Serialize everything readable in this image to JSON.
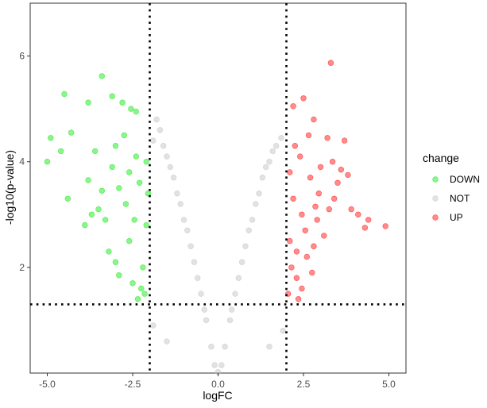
{
  "chart_data": {
    "type": "scatter",
    "title": "",
    "xlabel": "logFC",
    "ylabel": "-log10(p-value)",
    "xlim": [
      -5.5,
      5.5
    ],
    "ylim": [
      0,
      7.0
    ],
    "x_ticks": [
      {
        "value": -5.0,
        "label": "-5.0"
      },
      {
        "value": -2.5,
        "label": "-2.5"
      },
      {
        "value": 0.0,
        "label": "0.0"
      },
      {
        "value": 2.5,
        "label": "2.5"
      },
      {
        "value": 5.0,
        "label": "5.0"
      }
    ],
    "y_ticks": [
      {
        "value": 2,
        "label": "2"
      },
      {
        "value": 4,
        "label": "4"
      },
      {
        "value": 6,
        "label": "6"
      }
    ],
    "thresholds": {
      "logFC": [
        -2,
        2
      ],
      "neg_log10_p": 1.3
    },
    "grid": false,
    "legend_position": "right",
    "legend": {
      "title": "change",
      "entries": [
        {
          "name": "DOWN",
          "color": "#00e600"
        },
        {
          "name": "NOT",
          "color": "#bebebe"
        },
        {
          "name": "UP",
          "color": "#ff0000"
        }
      ]
    },
    "series": [
      {
        "name": "DOWN",
        "color": "#00e600",
        "points": [
          [
            -4.9,
            4.45
          ],
          [
            -4.5,
            5.28
          ],
          [
            -3.8,
            5.12
          ],
          [
            -3.4,
            5.62
          ],
          [
            -3.1,
            5.24
          ],
          [
            -2.8,
            5.12
          ],
          [
            -2.55,
            5.0
          ],
          [
            -2.4,
            4.95
          ],
          [
            -5.0,
            4.0
          ],
          [
            -4.6,
            4.2
          ],
          [
            -4.3,
            4.55
          ],
          [
            -4.4,
            3.3
          ],
          [
            -3.8,
            3.65
          ],
          [
            -3.9,
            2.8
          ],
          [
            -3.6,
            4.2
          ],
          [
            -3.5,
            3.1
          ],
          [
            -3.3,
            2.9
          ],
          [
            -3.2,
            2.3
          ],
          [
            -3.1,
            3.9
          ],
          [
            -3.0,
            2.1
          ],
          [
            -2.9,
            1.85
          ],
          [
            -2.9,
            3.5
          ],
          [
            -2.7,
            3.2
          ],
          [
            -2.6,
            2.5
          ],
          [
            -2.5,
            1.7
          ],
          [
            -2.4,
            4.1
          ],
          [
            -2.3,
            3.6
          ],
          [
            -2.2,
            2.0
          ],
          [
            -2.15,
            1.5
          ],
          [
            -2.1,
            2.8
          ],
          [
            -2.05,
            3.4
          ],
          [
            -3.4,
            3.45
          ],
          [
            -3.7,
            3.0
          ],
          [
            -2.75,
            4.5
          ],
          [
            -2.45,
            2.9
          ],
          [
            -2.25,
            1.6
          ],
          [
            -3.0,
            4.3
          ],
          [
            -2.6,
            3.8
          ],
          [
            -2.35,
            1.4
          ],
          [
            -2.1,
            4.0
          ]
        ]
      },
      {
        "name": "UP",
        "color": "#ff0000",
        "points": [
          [
            3.3,
            5.87
          ],
          [
            2.2,
            5.05
          ],
          [
            2.5,
            5.2
          ],
          [
            2.8,
            4.8
          ],
          [
            3.2,
            4.45
          ],
          [
            3.7,
            4.4
          ],
          [
            3.6,
            3.85
          ],
          [
            3.8,
            3.75
          ],
          [
            3.9,
            3.1
          ],
          [
            4.1,
            3.0
          ],
          [
            4.4,
            2.9
          ],
          [
            4.9,
            2.78
          ],
          [
            4.3,
            2.75
          ],
          [
            3.1,
            2.6
          ],
          [
            2.8,
            2.4
          ],
          [
            3.4,
            3.3
          ],
          [
            2.7,
            3.7
          ],
          [
            2.4,
            4.1
          ],
          [
            3.0,
            3.9
          ],
          [
            2.9,
            2.9
          ],
          [
            2.6,
            2.2
          ],
          [
            2.3,
            1.8
          ],
          [
            2.2,
            3.3
          ],
          [
            2.1,
            2.5
          ],
          [
            2.05,
            1.5
          ],
          [
            2.15,
            2.0
          ],
          [
            2.45,
            3.0
          ],
          [
            2.35,
            1.4
          ],
          [
            3.5,
            3.6
          ],
          [
            2.65,
            4.5
          ],
          [
            3.25,
            3.1
          ],
          [
            2.25,
            4.3
          ],
          [
            2.75,
            1.9
          ],
          [
            2.95,
            3.4
          ],
          [
            2.1,
            3.8
          ],
          [
            2.55,
            2.7
          ],
          [
            3.35,
            4.0
          ],
          [
            2.85,
            3.15
          ],
          [
            2.3,
            2.3
          ],
          [
            2.45,
            1.6
          ]
        ]
      },
      {
        "name": "NOT",
        "color": "#bebebe",
        "points": [
          [
            -1.8,
            4.8
          ],
          [
            -1.7,
            4.6
          ],
          [
            -1.9,
            4.4
          ],
          [
            -1.5,
            4.1
          ],
          [
            -1.3,
            3.7
          ],
          [
            -1.1,
            3.2
          ],
          [
            -0.9,
            2.7
          ],
          [
            -0.7,
            2.1
          ],
          [
            -0.5,
            1.5
          ],
          [
            -0.35,
            1.0
          ],
          [
            -0.2,
            0.5
          ],
          [
            -0.1,
            0.15
          ],
          [
            0.0,
            0.02
          ],
          [
            0.1,
            0.15
          ],
          [
            0.2,
            0.5
          ],
          [
            0.35,
            1.0
          ],
          [
            0.5,
            1.5
          ],
          [
            0.7,
            2.1
          ],
          [
            0.9,
            2.7
          ],
          [
            1.1,
            3.2
          ],
          [
            1.3,
            3.7
          ],
          [
            1.5,
            4.0
          ],
          [
            1.7,
            4.3
          ],
          [
            1.85,
            4.45
          ],
          [
            1.6,
            4.2
          ],
          [
            1.4,
            3.9
          ],
          [
            -1.6,
            4.3
          ],
          [
            -1.4,
            3.9
          ],
          [
            -1.2,
            3.4
          ],
          [
            -1.0,
            2.9
          ],
          [
            -0.8,
            2.4
          ],
          [
            -0.6,
            1.8
          ],
          [
            -0.4,
            1.2
          ],
          [
            0.4,
            1.2
          ],
          [
            0.6,
            1.8
          ],
          [
            0.8,
            2.4
          ],
          [
            1.0,
            2.9
          ],
          [
            1.2,
            3.4
          ],
          [
            -1.9,
            0.9
          ],
          [
            1.9,
            0.8
          ],
          [
            -1.5,
            0.6
          ],
          [
            1.5,
            0.5
          ]
        ]
      }
    ]
  }
}
